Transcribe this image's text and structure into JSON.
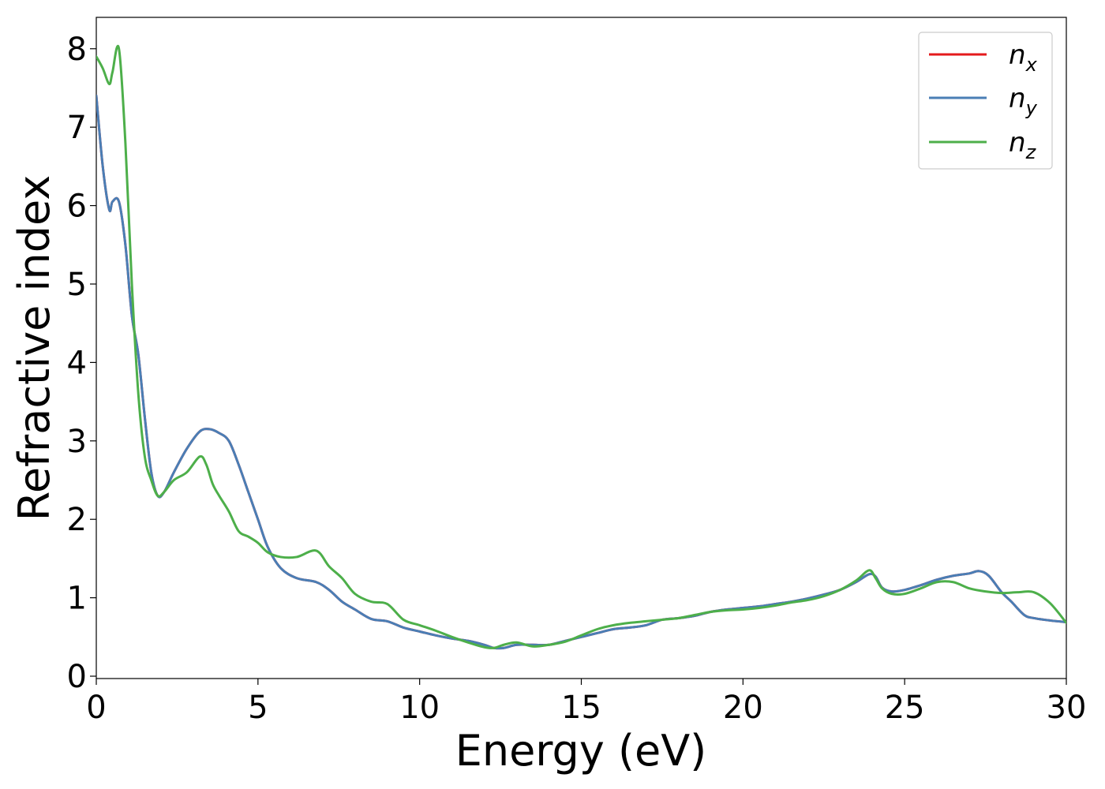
{
  "chart_data": {
    "type": "line",
    "title": "",
    "xlabel": "Energy (eV)",
    "ylabel": "Refractive index",
    "xlim": [
      0,
      30
    ],
    "ylim": [
      -0.03,
      8.4
    ],
    "xticks": [
      0,
      5,
      10,
      15,
      20,
      25,
      30
    ],
    "yticks": [
      0,
      1,
      2,
      3,
      4,
      5,
      6,
      7,
      8
    ],
    "grid": false,
    "legend": "top-right",
    "series": [
      {
        "name": "n_x",
        "label_main": "n",
        "label_sub": "x",
        "color": "#e41a1c",
        "x": [
          0,
          0.2,
          0.4,
          0.5,
          0.7,
          0.9,
          1.1,
          1.3,
          1.5,
          1.7,
          1.9,
          2.1,
          2.4,
          2.8,
          3.2,
          3.5,
          3.8,
          4.1,
          4.4,
          4.7,
          5.0,
          5.3,
          5.7,
          6.2,
          6.8,
          7.2,
          7.6,
          8.0,
          8.5,
          9.0,
          9.5,
          10.0,
          10.5,
          11.0,
          11.5,
          12.0,
          12.3,
          12.6,
          13.0,
          13.5,
          14.0,
          14.5,
          15.0,
          15.5,
          16.0,
          16.5,
          17.0,
          17.5,
          18.0,
          18.5,
          19.0,
          19.5,
          20.0,
          20.5,
          21.0,
          21.5,
          22.0,
          22.5,
          23.0,
          23.5,
          23.9,
          24.1,
          24.3,
          24.6,
          25.0,
          25.5,
          26.0,
          26.5,
          27.0,
          27.3,
          27.6,
          28.0,
          28.3,
          28.7,
          29.0,
          29.5,
          30.0
        ],
        "y": [
          7.4,
          6.5,
          5.95,
          6.05,
          6.05,
          5.5,
          4.6,
          4.1,
          3.3,
          2.6,
          2.3,
          2.35,
          2.6,
          2.9,
          3.12,
          3.15,
          3.1,
          3.0,
          2.7,
          2.35,
          2.0,
          1.65,
          1.38,
          1.25,
          1.2,
          1.1,
          0.95,
          0.85,
          0.73,
          0.7,
          0.62,
          0.57,
          0.52,
          0.48,
          0.45,
          0.4,
          0.36,
          0.36,
          0.4,
          0.4,
          0.4,
          0.45,
          0.5,
          0.55,
          0.6,
          0.62,
          0.65,
          0.72,
          0.74,
          0.77,
          0.82,
          0.85,
          0.87,
          0.89,
          0.92,
          0.95,
          0.99,
          1.04,
          1.1,
          1.2,
          1.3,
          1.27,
          1.13,
          1.08,
          1.1,
          1.16,
          1.23,
          1.28,
          1.31,
          1.34,
          1.28,
          1.07,
          0.95,
          0.78,
          0.74,
          0.71,
          0.69
        ]
      },
      {
        "name": "n_y",
        "label_main": "n",
        "label_sub": "y",
        "color": "#4a7eb5",
        "x": [
          0,
          0.2,
          0.4,
          0.5,
          0.7,
          0.9,
          1.1,
          1.3,
          1.5,
          1.7,
          1.9,
          2.1,
          2.4,
          2.8,
          3.2,
          3.5,
          3.8,
          4.1,
          4.4,
          4.7,
          5.0,
          5.3,
          5.7,
          6.2,
          6.8,
          7.2,
          7.6,
          8.0,
          8.5,
          9.0,
          9.5,
          10.0,
          10.5,
          11.0,
          11.5,
          12.0,
          12.3,
          12.6,
          13.0,
          13.5,
          14.0,
          14.5,
          15.0,
          15.5,
          16.0,
          16.5,
          17.0,
          17.5,
          18.0,
          18.5,
          19.0,
          19.5,
          20.0,
          20.5,
          21.0,
          21.5,
          22.0,
          22.5,
          23.0,
          23.5,
          23.9,
          24.1,
          24.3,
          24.6,
          25.0,
          25.5,
          26.0,
          26.5,
          27.0,
          27.3,
          27.6,
          28.0,
          28.3,
          28.7,
          29.0,
          29.5,
          30.0
        ],
        "y": [
          7.4,
          6.5,
          5.95,
          6.05,
          6.05,
          5.5,
          4.6,
          4.1,
          3.3,
          2.6,
          2.3,
          2.35,
          2.6,
          2.9,
          3.12,
          3.15,
          3.1,
          3.0,
          2.7,
          2.35,
          2.0,
          1.65,
          1.38,
          1.25,
          1.2,
          1.1,
          0.95,
          0.85,
          0.73,
          0.7,
          0.62,
          0.57,
          0.52,
          0.48,
          0.45,
          0.4,
          0.36,
          0.36,
          0.4,
          0.4,
          0.4,
          0.45,
          0.5,
          0.55,
          0.6,
          0.62,
          0.65,
          0.72,
          0.74,
          0.77,
          0.82,
          0.85,
          0.87,
          0.89,
          0.92,
          0.95,
          0.99,
          1.04,
          1.1,
          1.2,
          1.3,
          1.27,
          1.13,
          1.08,
          1.1,
          1.16,
          1.23,
          1.28,
          1.31,
          1.34,
          1.28,
          1.07,
          0.95,
          0.78,
          0.74,
          0.71,
          0.69
        ]
      },
      {
        "name": "n_z",
        "label_main": "n",
        "label_sub": "z",
        "color": "#4daf4a",
        "x": [
          0,
          0.2,
          0.4,
          0.5,
          0.7,
          0.9,
          1.1,
          1.3,
          1.5,
          1.7,
          1.9,
          2.1,
          2.4,
          2.8,
          3.2,
          3.4,
          3.6,
          3.8,
          4.1,
          4.4,
          4.7,
          5.0,
          5.3,
          5.7,
          6.2,
          6.8,
          7.2,
          7.6,
          8.0,
          8.5,
          9.0,
          9.5,
          10.0,
          10.5,
          11.0,
          11.5,
          12.0,
          12.3,
          12.6,
          13.0,
          13.5,
          14.0,
          14.5,
          15.0,
          15.5,
          16.0,
          16.5,
          17.0,
          17.5,
          18.0,
          18.5,
          19.0,
          19.5,
          20.0,
          20.5,
          21.0,
          21.5,
          22.0,
          22.5,
          23.0,
          23.5,
          23.9,
          24.1,
          24.3,
          24.6,
          25.0,
          25.5,
          26.0,
          26.5,
          27.0,
          27.5,
          28.0,
          28.5,
          29.0,
          29.5,
          30.0
        ],
        "y": [
          7.9,
          7.75,
          7.55,
          7.7,
          8.0,
          6.8,
          5.0,
          3.6,
          2.8,
          2.5,
          2.3,
          2.35,
          2.5,
          2.6,
          2.8,
          2.7,
          2.45,
          2.3,
          2.1,
          1.85,
          1.78,
          1.7,
          1.58,
          1.52,
          1.52,
          1.6,
          1.4,
          1.25,
          1.05,
          0.95,
          0.92,
          0.72,
          0.65,
          0.58,
          0.5,
          0.43,
          0.37,
          0.36,
          0.4,
          0.43,
          0.38,
          0.4,
          0.44,
          0.52,
          0.6,
          0.65,
          0.68,
          0.7,
          0.72,
          0.74,
          0.78,
          0.82,
          0.84,
          0.85,
          0.87,
          0.9,
          0.94,
          0.97,
          1.02,
          1.1,
          1.22,
          1.35,
          1.25,
          1.12,
          1.05,
          1.05,
          1.12,
          1.2,
          1.2,
          1.12,
          1.08,
          1.06,
          1.07,
          1.07,
          0.93,
          0.68
        ]
      }
    ]
  }
}
